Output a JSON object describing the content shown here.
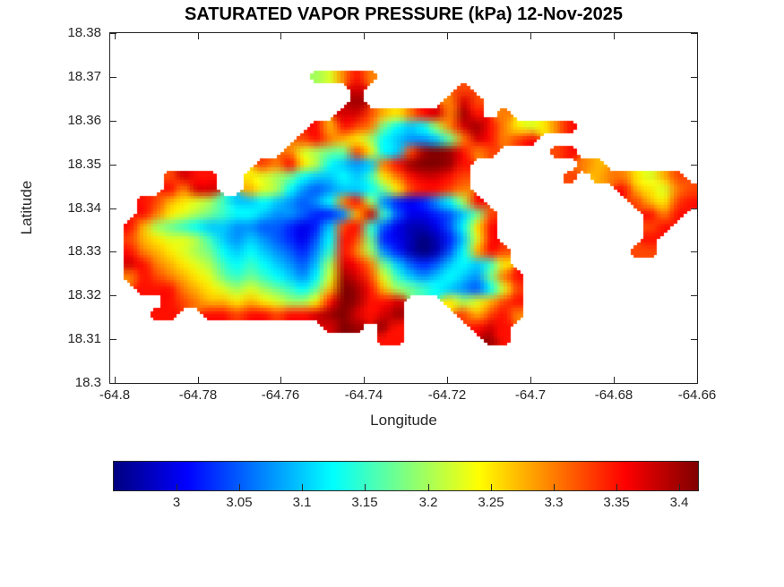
{
  "figure": {
    "background": "#FFFFFF",
    "axis_color": "#262626",
    "title_color": "#000000"
  },
  "chart_data": {
    "type": "heatmap",
    "title": "SATURATED VAPOR PRESSURE (kPa) 12-Nov-2025",
    "xlabel": "Longitude",
    "ylabel": "Latitude",
    "units": "kPa",
    "xlim": [
      -64.801,
      -64.66
    ],
    "ylim": [
      18.3,
      18.38
    ],
    "xticks": [
      -64.8,
      -64.78,
      -64.76,
      -64.74,
      -64.72,
      -64.7,
      -64.68,
      -64.66
    ],
    "xtick_labels": [
      "-64.8",
      "-64.78",
      "-64.76",
      "-64.74",
      "-64.72",
      "-64.7",
      "-64.68",
      "-64.66"
    ],
    "yticks": [
      18.3,
      18.31,
      18.32,
      18.33,
      18.34,
      18.35,
      18.36,
      18.37,
      18.38
    ],
    "ytick_labels": [
      "18.3",
      "18.31",
      "18.32",
      "18.33",
      "18.34",
      "18.35",
      "18.36",
      "18.37",
      "18.38"
    ],
    "grid_on": false,
    "legend": "none",
    "colorbar": {
      "orientation": "horizontal-below",
      "colormap": "jet",
      "clim": [
        2.95,
        3.415
      ],
      "ticks": [
        3,
        3.05,
        3.1,
        3.15,
        3.2,
        3.25,
        3.3,
        3.35,
        3.4
      ],
      "tick_labels": [
        "3",
        "3.05",
        "3.1",
        "3.15",
        "3.2",
        "3.25",
        "3.3",
        "3.35",
        "3.4"
      ],
      "stops": [
        {
          "pos": 0.0,
          "color": "#000080"
        },
        {
          "pos": 0.125,
          "color": "#0000FF"
        },
        {
          "pos": 0.375,
          "color": "#00FFFF"
        },
        {
          "pos": 0.625,
          "color": "#FFFF00"
        },
        {
          "pos": 0.875,
          "color": "#FF0000"
        },
        {
          "pos": 1.0,
          "color": "#800000"
        }
      ]
    },
    "grid": {
      "comment_encoding": "each char = one cell of saturated vapor pressure (kPa); '.'=water; value = value_min + index(char in value_chars)*value_step",
      "cols": 44,
      "rows": 28,
      "water_char": ".",
      "value_min": 2.95,
      "value_step": 0.025,
      "value_chars": "abcdefghijklmnopqrst",
      "rows_data": [
        "............................................",
        "............................................",
        "............................................",
        "...............kloqo........................",
        "..................r.......p.................",
        "..................s......orp................",
        ".................rrpnmoqrosq.o..............",
        "...............qnqpojhghkorsqomlmoq.........",
        "..............pqonmkhgffgjorqopq............",
        ".............olkjjpmhgpstsqop....pq.........",
        "...........poqmkhgfgoqsttsq........on.......",
        "....prqq..mlkjhgghgimoqrrqp.......p.noomlnp.",
        "....qorr..nlkhfefgghjmpqqpo...........qnmlop",
        "..qpnmlkigghgfefhoqkfdcdfhkq...........pnmpq",
        "..qomlkjihhgffeddfnrieccdegjp...........qoq.",
        ".qnkjihggffeedcdgpqiecbbcehmq...........pq..",
        ".pnmllkigfgfedcehqpjdcbabdglq...........q...",
        ".qonmlkjhghgfedfiqokfdbabehnqp.........pp...",
        ".rqonmlkihihgfegkrqojgedeghgim..............",
        ".oqponmljijihgfhlsrpligfghgfjoq.............",
        "..qqqonmlklkjihjntsqnkjihgfehlp.............",
        "....qponnmnmlkkmqtsqqr...mklnpq.............",
        "...qq..qqpqqpqqrstrqrs....pnpqo.............",
        "................rts.sq.....qrq..............",
        "....................qq......sq..............",
        "............................................",
        "............................................",
        "............................................"
      ]
    }
  }
}
